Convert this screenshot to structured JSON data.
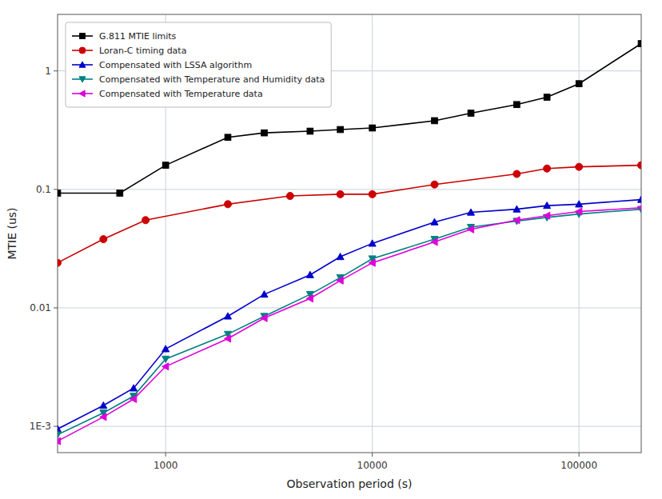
{
  "chart_data": {
    "type": "line",
    "x_label": "Observation period (s)",
    "y_label": "MTIE (us)",
    "log": true,
    "grid": true,
    "legend": "top-left",
    "xlim": [
      300,
      200000
    ],
    "ylim": [
      0.0006,
      3.0
    ],
    "xticks": [
      1000,
      10000,
      100000
    ],
    "yticks": [
      {
        "value": 0.001,
        "label": "1E-3"
      },
      0.01,
      0.1,
      1
    ],
    "series": [
      {
        "name": "G.811 MTIE limits",
        "color": "#000000",
        "marker": "square",
        "line_style": "solid",
        "x": [
          300,
          600,
          1000,
          2000,
          3000,
          5000,
          7000,
          10000,
          20000,
          30000,
          50000,
          70000,
          100000,
          200000
        ],
        "values": [
          0.093,
          0.093,
          0.16,
          0.275,
          0.3,
          0.31,
          0.32,
          0.33,
          0.38,
          0.44,
          0.52,
          0.6,
          0.78,
          1.7
        ]
      },
      {
        "name": "Loran-C timing data",
        "color": "#cc0000",
        "marker": "circle",
        "line_style": "solid",
        "x": [
          300,
          500,
          800,
          2000,
          4000,
          7000,
          10000,
          20000,
          50000,
          70000,
          100000,
          200000
        ],
        "values": [
          0.024,
          0.038,
          0.055,
          0.075,
          0.088,
          0.091,
          0.091,
          0.11,
          0.135,
          0.15,
          0.155,
          0.16
        ]
      },
      {
        "name": "Compensated with LSSA algorithm",
        "color": "#0000cc",
        "marker": "triangle-up",
        "line_style": "solid",
        "x": [
          300,
          500,
          700,
          1000,
          2000,
          3000,
          5000,
          7000,
          10000,
          20000,
          30000,
          50000,
          70000,
          100000,
          200000
        ],
        "values": [
          0.00095,
          0.0015,
          0.0021,
          0.0045,
          0.0085,
          0.013,
          0.019,
          0.027,
          0.035,
          0.053,
          0.064,
          0.068,
          0.073,
          0.075,
          0.082
        ]
      },
      {
        "name": "Compensated with Temperature and Humidity data",
        "color": "#008080",
        "marker": "triangle-down",
        "line_style": "solid",
        "x": [
          300,
          500,
          700,
          1000,
          2000,
          3000,
          5000,
          7000,
          10000,
          20000,
          30000,
          50000,
          70000,
          100000,
          200000
        ],
        "values": [
          0.00085,
          0.0013,
          0.0018,
          0.0037,
          0.006,
          0.0085,
          0.013,
          0.018,
          0.026,
          0.038,
          0.048,
          0.054,
          0.058,
          0.062,
          0.068
        ]
      },
      {
        "name": "Compensated with Temperature data",
        "color": "#dd00dd",
        "marker": "triangle-left",
        "line_style": "solid",
        "x": [
          300,
          500,
          700,
          1000,
          2000,
          3000,
          5000,
          7000,
          10000,
          20000,
          30000,
          50000,
          70000,
          100000,
          200000
        ],
        "values": [
          0.00075,
          0.0012,
          0.0017,
          0.0032,
          0.0055,
          0.0082,
          0.012,
          0.017,
          0.024,
          0.036,
          0.046,
          0.055,
          0.06,
          0.065,
          0.07
        ]
      }
    ]
  }
}
